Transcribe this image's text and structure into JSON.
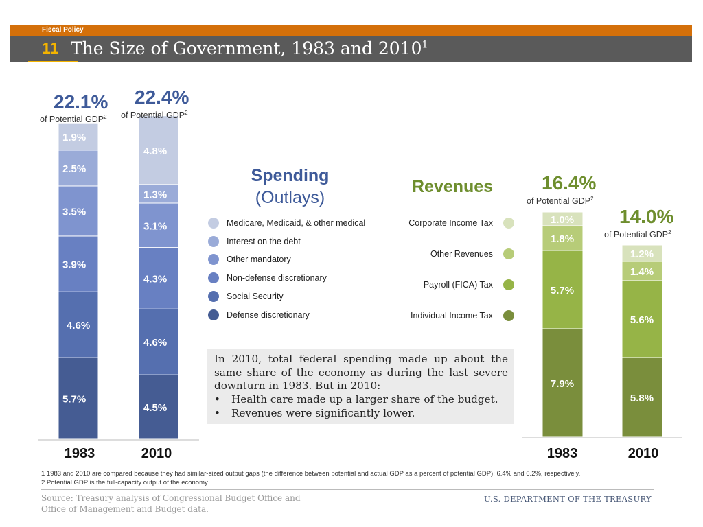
{
  "header": {
    "category": "Fiscal Policy",
    "number": "11",
    "title": "The Size of Government, 1983 and 2010",
    "title_sup": "1"
  },
  "spending": {
    "title_line1": "Spending",
    "title_line2": "(Outlays)",
    "title_color": "#3e5a99",
    "totals": [
      {
        "value": "22.1%",
        "sub": "of Potential GDP",
        "sup": "2"
      },
      {
        "value": "22.4%",
        "sub": "of Potential GDP",
        "sup": "2"
      }
    ],
    "legend": [
      {
        "label": "Medicare, Medicaid, & other medical",
        "color": "#c3cce2"
      },
      {
        "label": "Interest on the debt",
        "color": "#9aabd8"
      },
      {
        "label": "Other mandatory",
        "color": "#7f94cf"
      },
      {
        "label": "Non-defense discretionary",
        "color": "#6880c2"
      },
      {
        "label": "Social Security",
        "color": "#556faf"
      },
      {
        "label": "Defense discretionary",
        "color": "#455c93"
      }
    ]
  },
  "revenues": {
    "title": "Revenues",
    "title_color": "#6e8e2e",
    "totals": [
      {
        "value": "16.4%",
        "sub": "of Potential GDP",
        "sup": "2"
      },
      {
        "value": "14.0%",
        "sub": "of Potential GDP",
        "sup": "2"
      }
    ],
    "legend": [
      {
        "label": "Corporate Income Tax",
        "color": "#d8e2bc"
      },
      {
        "label": "Other Revenues",
        "color": "#b7cc78"
      },
      {
        "label": "Payroll (FICA) Tax",
        "color": "#96b447"
      },
      {
        "label": "Individual Income Tax",
        "color": "#7a8e3c"
      }
    ]
  },
  "chart_data": [
    {
      "type": "bar",
      "stacked": true,
      "categories": [
        "1983",
        "2010"
      ],
      "series": [
        {
          "name": "Defense discretionary",
          "values": [
            5.7,
            4.5
          ],
          "labels": [
            "5.7%",
            "4.5%"
          ],
          "color": "#455c93"
        },
        {
          "name": "Social Security",
          "values": [
            4.6,
            4.6
          ],
          "labels": [
            "4.6%",
            "4.6%"
          ],
          "color": "#556faf"
        },
        {
          "name": "Non-defense discretionary",
          "values": [
            3.9,
            4.3
          ],
          "labels": [
            "3.9%",
            "4.3%"
          ],
          "color": "#6880c2"
        },
        {
          "name": "Other mandatory",
          "values": [
            3.5,
            3.1
          ],
          "labels": [
            "3.5%",
            "3.1%"
          ],
          "color": "#7f94cf"
        },
        {
          "name": "Interest on the debt",
          "values": [
            2.5,
            1.3
          ],
          "labels": [
            "2.5%",
            "1.3%"
          ],
          "color": "#9aabd8"
        },
        {
          "name": "Medicare, Medicaid, & other medical",
          "values": [
            1.9,
            4.8
          ],
          "labels": [
            "1.9%",
            "4.8%"
          ],
          "color": "#c3cce2"
        }
      ],
      "totals": [
        22.1,
        22.4
      ]
    },
    {
      "type": "bar",
      "stacked": true,
      "categories": [
        "1983",
        "2010"
      ],
      "series": [
        {
          "name": "Individual Income Tax",
          "values": [
            7.9,
            5.8
          ],
          "labels": [
            "7.9%",
            "5.8%"
          ],
          "color": "#7a8e3c"
        },
        {
          "name": "Payroll (FICA) Tax",
          "values": [
            5.7,
            5.6
          ],
          "labels": [
            "5.7%",
            "5.6%"
          ],
          "color": "#96b447"
        },
        {
          "name": "Other Revenues",
          "values": [
            1.8,
            1.4
          ],
          "labels": [
            "1.8%",
            "1.4%"
          ],
          "color": "#b7cc78"
        },
        {
          "name": "Corporate Income Tax",
          "values": [
            1.0,
            1.2
          ],
          "labels": [
            "1.0%",
            "1.2%"
          ],
          "color": "#d8e2bc"
        }
      ],
      "totals": [
        16.4,
        14.0
      ]
    }
  ],
  "note": {
    "paragraph": "In 2010, total federal spending made up about the same share of the economy as during the last severe downturn in 1983. But in 2010:",
    "bullets": [
      "Health care made up a larger share of the budget.",
      "Revenues were significantly lower."
    ],
    "bullet_char": "•"
  },
  "footnotes": [
    "1 1983 and 2010 are compared because they had similar-sized output gaps (the difference between potential and actual GDP as a percent of potential GDP): 6.4% and 6.2%, respectively.",
    "2 Potential GDP is the full-capacity output of the economy."
  ],
  "source": "Source: Treasury analysis of Congressional Budget Office and Office of Management and Budget data.",
  "agency": "U.S. DEPARTMENT OF THE TREASURY"
}
